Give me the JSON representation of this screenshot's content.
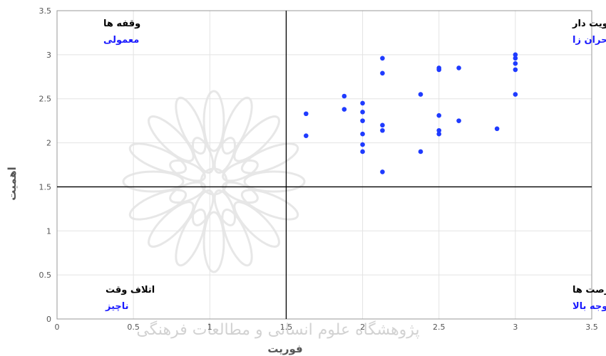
{
  "chart_data": {
    "type": "scatter",
    "xlabel": "فوریت",
    "ylabel": "اهمیت",
    "xlim": [
      0,
      3.5
    ],
    "ylim": [
      0,
      3.5
    ],
    "xticks": [
      "0",
      "0.5",
      "1",
      "1.5",
      "2",
      "2.5",
      "3",
      "3.5"
    ],
    "yticks": [
      "0",
      "0.5",
      "1",
      "1.5",
      "2",
      "2.5",
      "3",
      "3.5"
    ],
    "grid": true,
    "divider": {
      "x": 1.5,
      "y": 1.5
    },
    "point_color": "#1f3bff",
    "quadrants": {
      "top_left": {
        "title": "وقفه ها",
        "subtitle": "معمولی"
      },
      "top_right": {
        "title": "اولویت دار",
        "subtitle": "بحران زا"
      },
      "bottom_left": {
        "title": "اتلاف وقت",
        "subtitle": "ناچیز"
      },
      "bottom_right": {
        "title": "فرصت ها",
        "subtitle": "توجه بالا"
      }
    },
    "points": [
      {
        "x": 1.63,
        "y": 2.33
      },
      {
        "x": 1.63,
        "y": 2.08
      },
      {
        "x": 1.88,
        "y": 2.53
      },
      {
        "x": 1.88,
        "y": 2.38
      },
      {
        "x": 2.0,
        "y": 2.45
      },
      {
        "x": 2.0,
        "y": 2.35
      },
      {
        "x": 2.0,
        "y": 2.25
      },
      {
        "x": 2.0,
        "y": 2.1
      },
      {
        "x": 2.0,
        "y": 1.98
      },
      {
        "x": 2.0,
        "y": 1.9
      },
      {
        "x": 2.13,
        "y": 2.96
      },
      {
        "x": 2.13,
        "y": 2.79
      },
      {
        "x": 2.13,
        "y": 2.2
      },
      {
        "x": 2.13,
        "y": 2.14
      },
      {
        "x": 2.13,
        "y": 1.67
      },
      {
        "x": 2.38,
        "y": 2.55
      },
      {
        "x": 2.38,
        "y": 1.9
      },
      {
        "x": 2.5,
        "y": 2.85
      },
      {
        "x": 2.5,
        "y": 2.83
      },
      {
        "x": 2.5,
        "y": 2.31
      },
      {
        "x": 2.5,
        "y": 2.14
      },
      {
        "x": 2.5,
        "y": 2.1
      },
      {
        "x": 2.63,
        "y": 2.85
      },
      {
        "x": 2.63,
        "y": 2.25
      },
      {
        "x": 2.88,
        "y": 2.16
      },
      {
        "x": 3.0,
        "y": 3.0
      },
      {
        "x": 3.0,
        "y": 2.96
      },
      {
        "x": 3.0,
        "y": 2.9
      },
      {
        "x": 3.0,
        "y": 2.83
      },
      {
        "x": 3.0,
        "y": 2.55
      }
    ]
  },
  "watermark": {
    "text": "پژوهشگاه علوم انسانی و مطالعات فرهنگی"
  }
}
